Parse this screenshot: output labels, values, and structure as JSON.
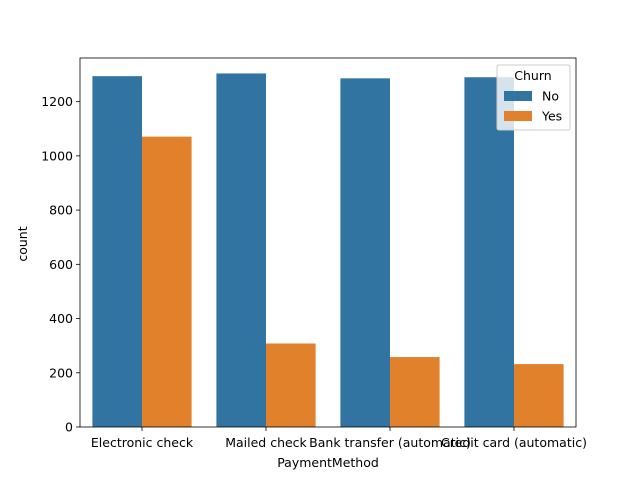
{
  "chart_data": {
    "type": "bar",
    "title": "",
    "xlabel": "PaymentMethod",
    "ylabel": "count",
    "categories": [
      "Electronic check",
      "Mailed check",
      "Bank transfer (automatic)",
      "Credit card (automatic)"
    ],
    "series": [
      {
        "name": "No",
        "color": "#3274a1",
        "values": [
          1294,
          1304,
          1286,
          1290
        ]
      },
      {
        "name": "Yes",
        "color": "#e1812c",
        "values": [
          1071,
          308,
          258,
          232
        ]
      }
    ],
    "ylim": [
      0,
      1361
    ],
    "yticks": [
      0,
      200,
      400,
      600,
      800,
      1000,
      1200
    ],
    "legend": {
      "title": "Churn",
      "placement": "top-right"
    },
    "grid": false
  }
}
